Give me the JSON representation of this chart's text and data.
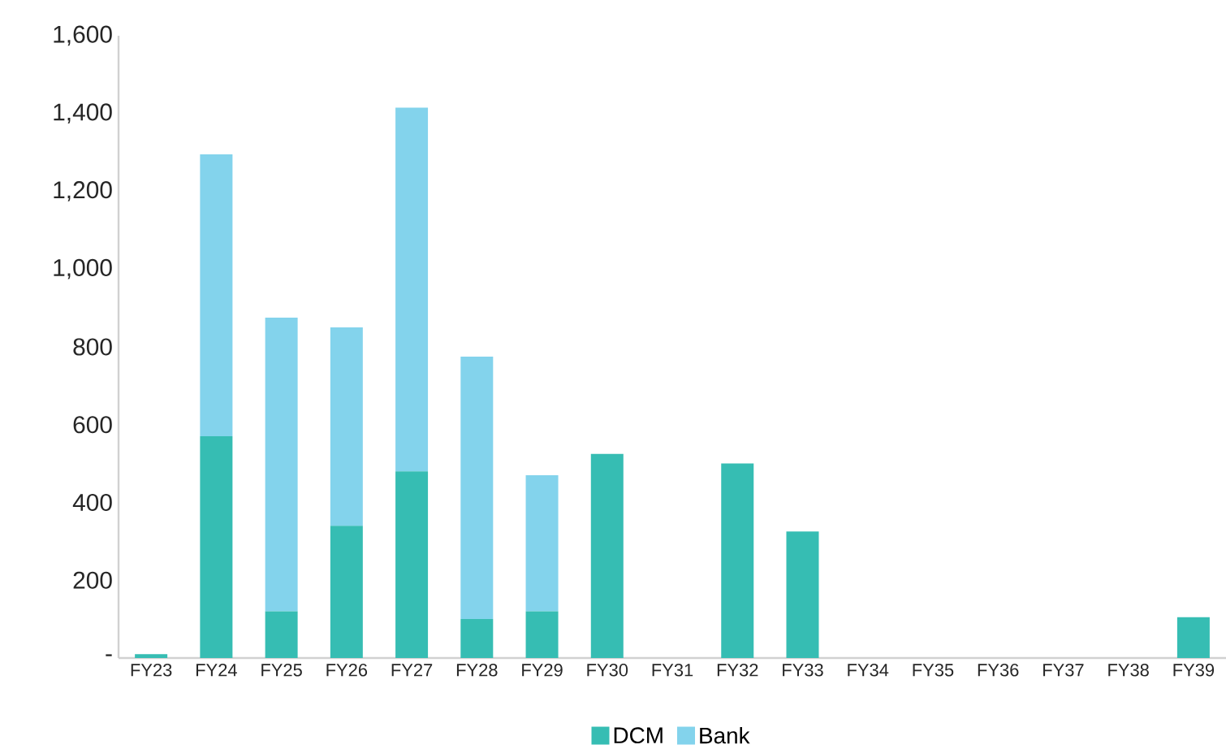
{
  "chart_data": {
    "type": "bar",
    "stacked": true,
    "legend": "bottom",
    "grid": false,
    "categories": [
      "FY23",
      "FY24",
      "FY25",
      "FY26",
      "FY27",
      "FY28",
      "FY29",
      "FY30",
      "FY31",
      "FY32",
      "FY33",
      "FY34",
      "FY35",
      "FY36",
      "FY37",
      "FY38",
      "FY39"
    ],
    "series": [
      {
        "name": "DCM",
        "color": "#36bdb3",
        "values": [
          10,
          570,
          120,
          340,
          480,
          100,
          120,
          525,
          0,
          500,
          325,
          0,
          0,
          0,
          0,
          0,
          105
        ]
      },
      {
        "name": "Bank",
        "color": "#83d3ec",
        "values": [
          0,
          725,
          755,
          510,
          935,
          675,
          350,
          0,
          0,
          0,
          0,
          0,
          0,
          0,
          0,
          0,
          0
        ]
      }
    ],
    "ylim": [
      0,
      1600
    ],
    "yticks": [
      {
        "value": 0,
        "label": "-"
      },
      200,
      400,
      600,
      800,
      {
        "value": 1000,
        "label": "1,000"
      },
      {
        "value": 1200,
        "label": "1,200"
      },
      {
        "value": 1400,
        "label": "1,400"
      },
      {
        "value": 1600,
        "label": "1,600"
      }
    ]
  }
}
